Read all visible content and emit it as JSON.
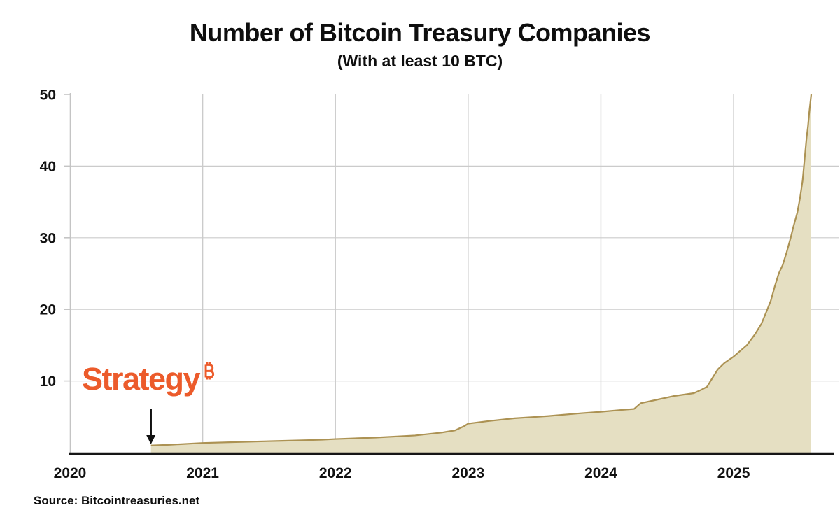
{
  "header": {
    "title": "Number of Bitcoin Treasury Companies",
    "subtitle": "(With at least 10 BTC)"
  },
  "annotation": {
    "label": "Strategy",
    "icon": "bitcoin-icon",
    "arrow_points_to_year": 2020.61
  },
  "footer": {
    "source": "Source: Bitcointreasuries.net"
  },
  "chart_data": {
    "type": "area",
    "title": "Number of Bitcoin Treasury Companies",
    "subtitle": "(With at least 10 BTC)",
    "xlabel": "",
    "ylabel": "",
    "xlim": [
      2020,
      2025.585
    ],
    "ylim": [
      0,
      50
    ],
    "xticks": [
      2020,
      2021,
      2022,
      2023,
      2024,
      2025
    ],
    "yticks": [
      10,
      20,
      30,
      40,
      50
    ],
    "grid": true,
    "legend": false,
    "x": [
      2020.61,
      2020.75,
      2021.0,
      2021.3,
      2021.6,
      2021.9,
      2022.0,
      2022.3,
      2022.6,
      2022.8,
      2022.9,
      2022.97,
      2023.0,
      2023.15,
      2023.35,
      2023.6,
      2023.85,
      2024.0,
      2024.15,
      2024.25,
      2024.3,
      2024.4,
      2024.55,
      2024.7,
      2024.76,
      2024.8,
      2024.84,
      2024.88,
      2024.93,
      2025.0,
      2025.05,
      2025.1,
      2025.16,
      2025.21,
      2025.25,
      2025.28,
      2025.31,
      2025.34,
      2025.37,
      2025.4,
      2025.43,
      2025.45,
      2025.48,
      2025.5,
      2025.52,
      2025.53,
      2025.54,
      2025.55,
      2025.56,
      2025.57,
      2025.585
    ],
    "values": [
      1.0,
      1.1,
      1.35,
      1.5,
      1.65,
      1.8,
      1.9,
      2.1,
      2.4,
      2.8,
      3.1,
      3.7,
      4.05,
      4.4,
      4.8,
      5.1,
      5.5,
      5.7,
      5.95,
      6.1,
      6.9,
      7.3,
      7.9,
      8.3,
      8.8,
      9.2,
      10.4,
      11.6,
      12.5,
      13.4,
      14.2,
      15.0,
      16.5,
      18.0,
      19.8,
      21.2,
      23.2,
      25.0,
      26.2,
      28.0,
      30.0,
      31.5,
      33.5,
      35.5,
      38.0,
      40.0,
      42.0,
      44.0,
      45.5,
      47.5,
      50.0
    ],
    "colors": {
      "area_fill": "#E5DFC2",
      "line": "#AC9253",
      "grid": "#CBCBCB",
      "axis_line": "#161616",
      "y_axis_line": "#C4C4C4",
      "text": "#111111",
      "accent_orange": "#EC5B2B"
    }
  }
}
